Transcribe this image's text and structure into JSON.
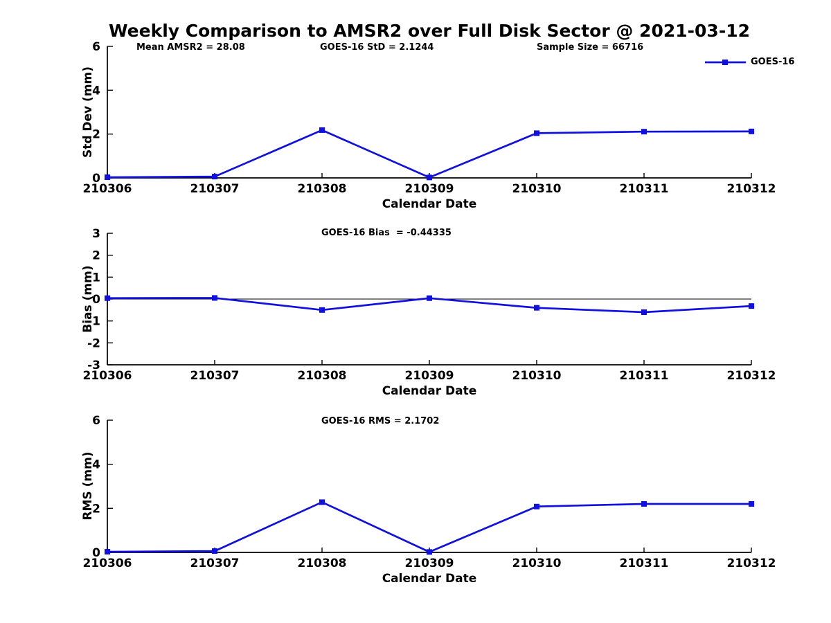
{
  "figure_title": "Weekly Comparison to AMSR2 over Full Disk Sector @ 2021-03-12",
  "legend": {
    "label": "GOES-16"
  },
  "colors": {
    "line": "#1010e0",
    "axis": "#000000",
    "background": "#ffffff"
  },
  "chart_data": [
    {
      "type": "line",
      "name": "std-dev",
      "annotations": [
        {
          "text": "Mean AMSR2 = 28.08"
        },
        {
          "text": "GOES-16 StD = 2.1244"
        },
        {
          "text": "Sample Size = 66716"
        }
      ],
      "categories": [
        "210306",
        "210307",
        "210308",
        "210309",
        "210310",
        "210311",
        "210312"
      ],
      "series": [
        {
          "name": "GOES-16",
          "values": [
            0.03,
            0.06,
            2.18,
            0.02,
            2.04,
            2.11,
            2.12
          ]
        }
      ],
      "ylabel": "Std Dev (mm)",
      "xlabel": "Calendar Date",
      "ylim": [
        0,
        6
      ],
      "yticks": [
        0,
        2,
        4,
        6
      ],
      "zero_line": false,
      "legend_position": "top-right",
      "grid": false
    },
    {
      "type": "line",
      "name": "bias",
      "annotations": [
        {
          "text": "GOES-16 Bias  = -0.44335"
        }
      ],
      "categories": [
        "210306",
        "210307",
        "210308",
        "210309",
        "210310",
        "210311",
        "210312"
      ],
      "series": [
        {
          "name": "GOES-16",
          "values": [
            0.04,
            0.05,
            -0.5,
            0.04,
            -0.4,
            -0.6,
            -0.32
          ]
        }
      ],
      "ylabel": "Bias (mm)",
      "xlabel": "Calendar Date",
      "ylim": [
        -3,
        3
      ],
      "yticks": [
        3,
        2,
        1,
        0,
        -1,
        -2,
        -3
      ],
      "zero_line": true,
      "legend_position": "none",
      "grid": false
    },
    {
      "type": "line",
      "name": "rms",
      "annotations": [
        {
          "text": "GOES-16 RMS = 2.1702"
        }
      ],
      "categories": [
        "210306",
        "210307",
        "210308",
        "210309",
        "210310",
        "210311",
        "210312"
      ],
      "series": [
        {
          "name": "GOES-16",
          "values": [
            0.03,
            0.06,
            2.28,
            0.02,
            2.08,
            2.2,
            2.2
          ]
        }
      ],
      "ylabel": "RMS (mm)",
      "xlabel": "Calendar Date",
      "ylim": [
        0,
        6
      ],
      "yticks": [
        0,
        2,
        4,
        6
      ],
      "zero_line": false,
      "legend_position": "none",
      "grid": false
    }
  ]
}
